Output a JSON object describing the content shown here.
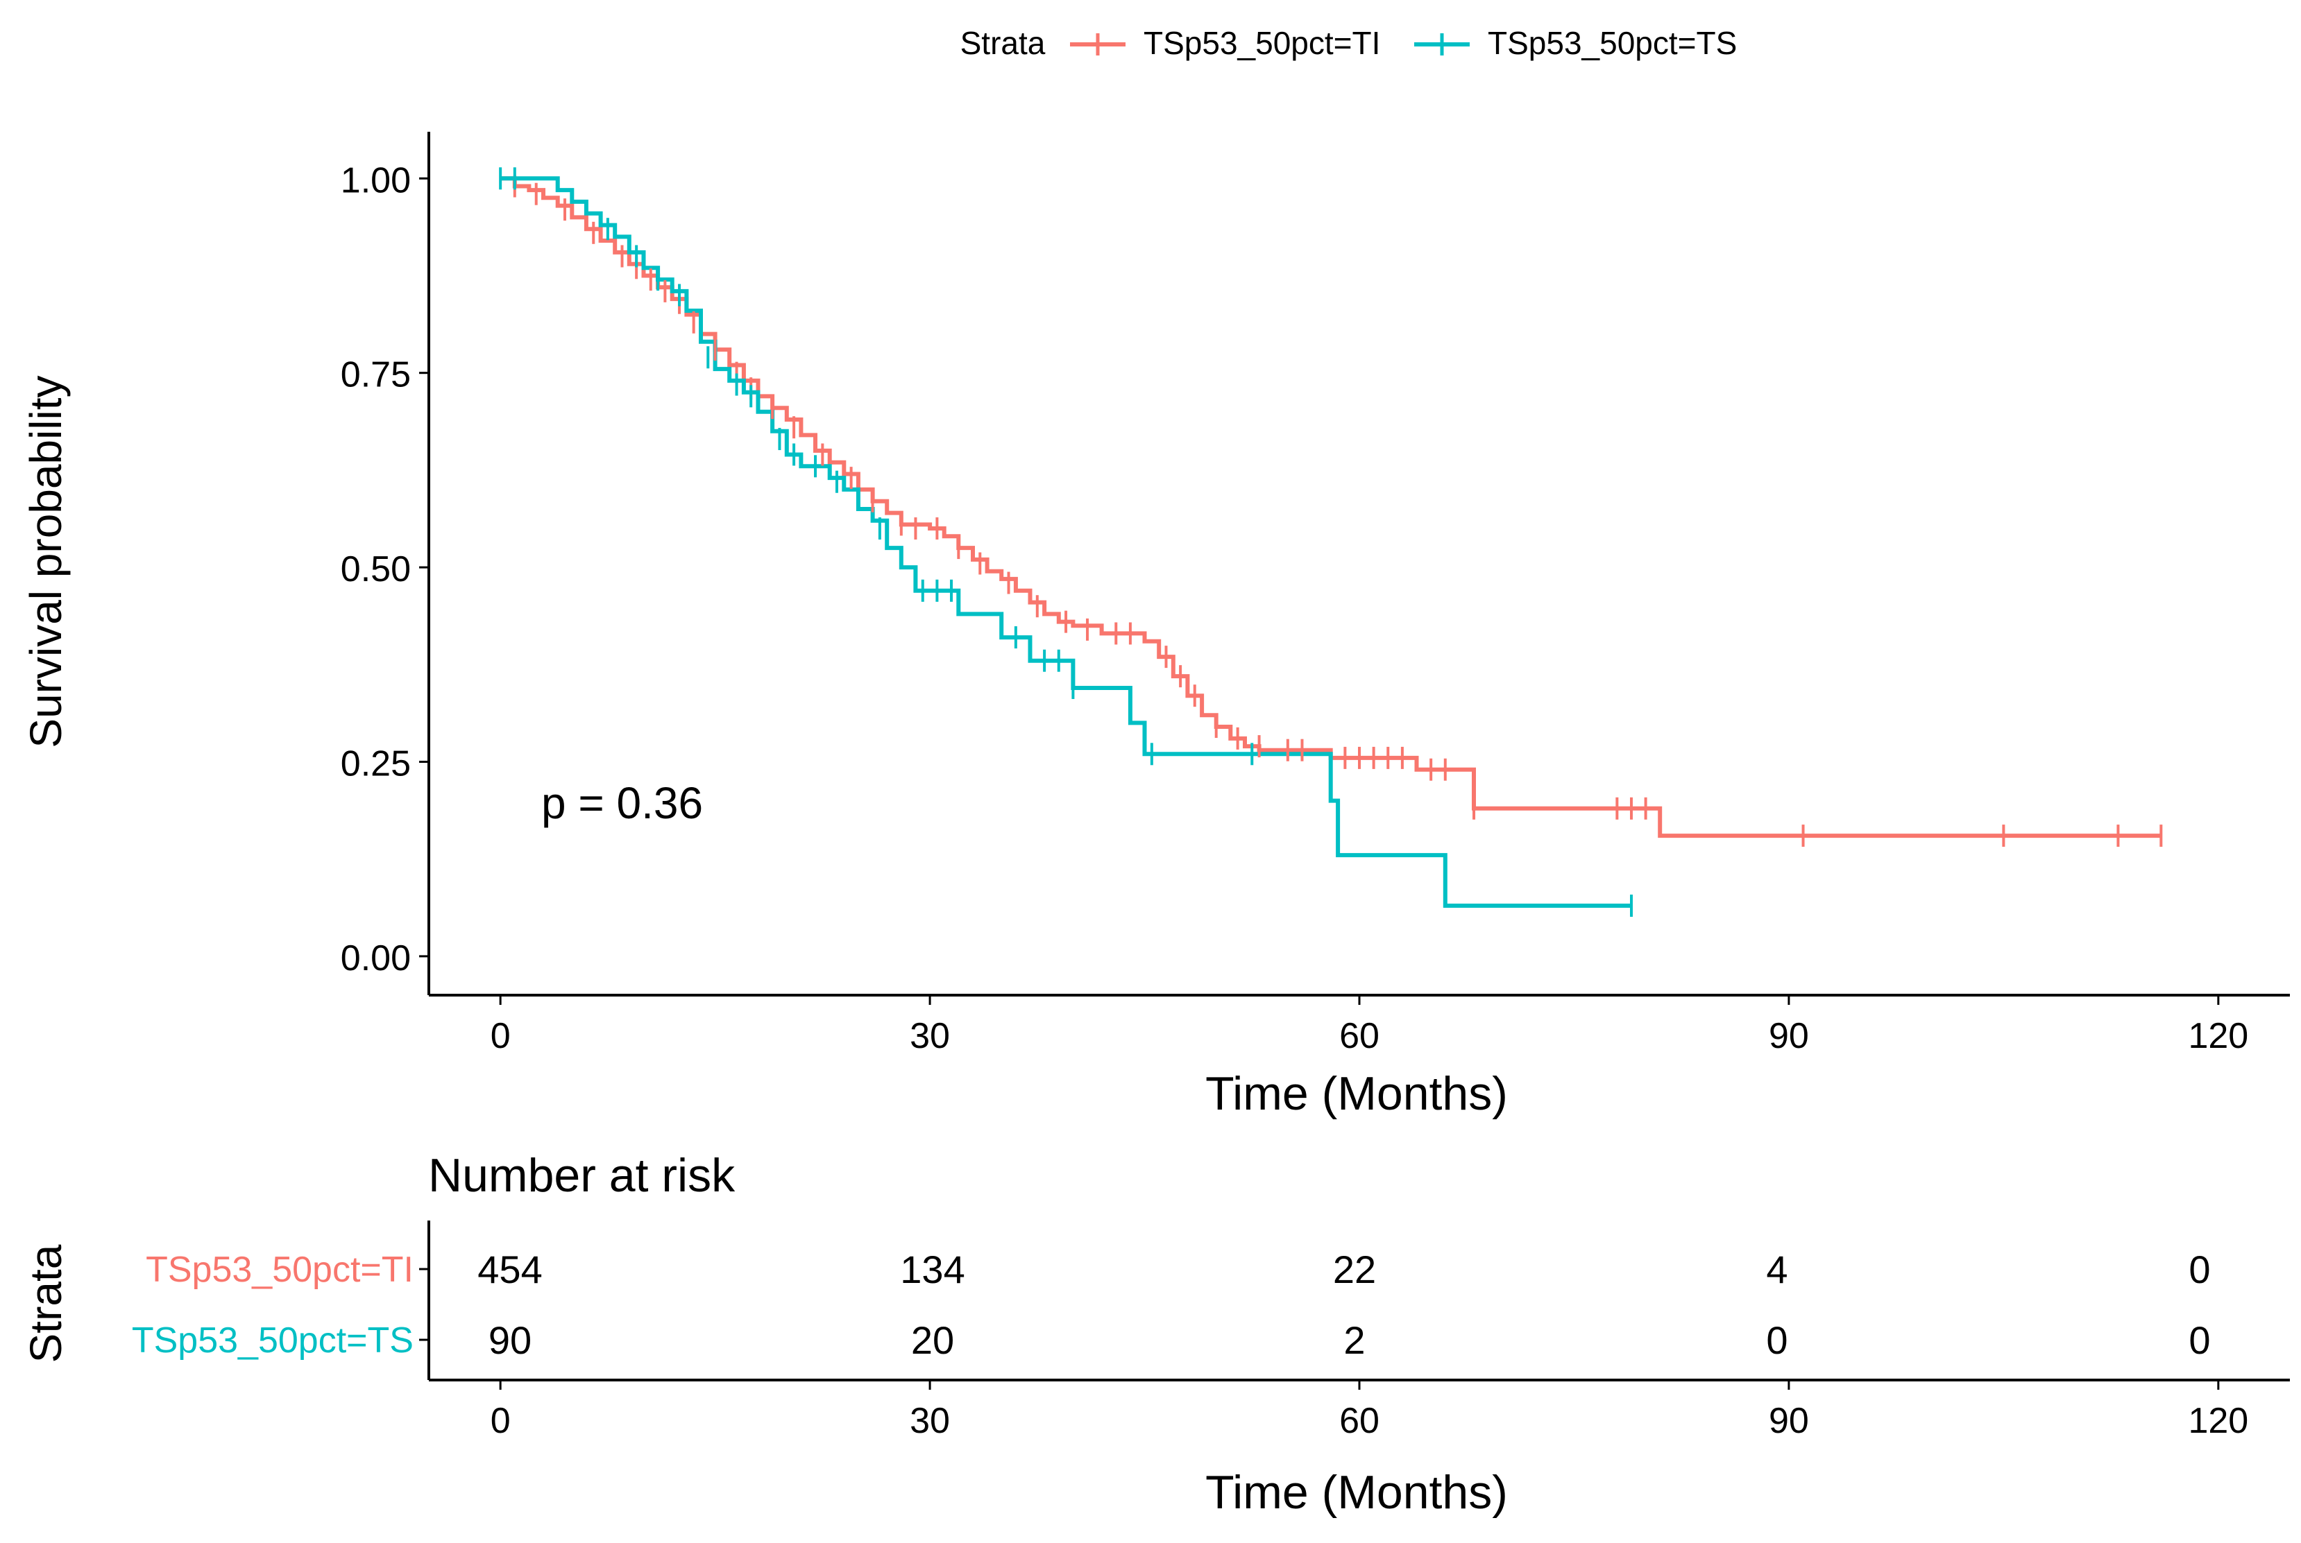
{
  "chart_data": {
    "type": "kaplan-meier",
    "legend": {
      "title": "Strata",
      "position": "top",
      "entries": [
        "TSp53_50pct=TI",
        "TSp53_50pct=TS"
      ]
    },
    "annotation": "p = 0.36",
    "colors": {
      "TI": "#f8766d",
      "TS": "#00bfc4",
      "axis": "#000000"
    },
    "main": {
      "xlabel": "Time (Months)",
      "ylabel": "Survival probability",
      "xlim": [
        -5,
        125
      ],
      "ylim": [
        -0.05,
        1.06
      ],
      "xticks": [
        0,
        30,
        60,
        90,
        120
      ],
      "xtick_labels": [
        "0",
        "30",
        "60",
        "90",
        "120"
      ],
      "yticks": [
        0,
        0.25,
        0.5,
        0.75,
        1.0
      ],
      "ytick_labels": [
        "0.00",
        "0.25",
        "0.50",
        "0.75",
        "1.00"
      ]
    },
    "series": [
      {
        "name": "TSp53_50pct=TI",
        "key": "TI",
        "steps": [
          [
            0,
            1
          ],
          [
            1,
            0.99
          ],
          [
            2,
            0.985
          ],
          [
            3,
            0.975
          ],
          [
            4,
            0.965
          ],
          [
            5,
            0.95
          ],
          [
            6,
            0.935
          ],
          [
            7,
            0.92
          ],
          [
            8,
            0.905
          ],
          [
            9,
            0.89
          ],
          [
            10,
            0.875
          ],
          [
            11,
            0.86
          ],
          [
            12,
            0.845
          ],
          [
            13,
            0.825
          ],
          [
            14,
            0.8
          ],
          [
            15,
            0.78
          ],
          [
            16,
            0.76
          ],
          [
            17,
            0.74
          ],
          [
            18,
            0.72
          ],
          [
            19,
            0.705
          ],
          [
            20,
            0.69
          ],
          [
            21,
            0.67
          ],
          [
            22,
            0.65
          ],
          [
            23,
            0.635
          ],
          [
            24,
            0.62
          ],
          [
            25,
            0.6
          ],
          [
            26,
            0.585
          ],
          [
            27,
            0.57
          ],
          [
            28,
            0.555
          ],
          [
            30,
            0.55
          ],
          [
            31,
            0.54
          ],
          [
            32,
            0.525
          ],
          [
            33,
            0.51
          ],
          [
            34,
            0.495
          ],
          [
            35,
            0.485
          ],
          [
            36,
            0.47
          ],
          [
            37,
            0.455
          ],
          [
            38,
            0.44
          ],
          [
            39,
            0.43
          ],
          [
            40,
            0.425
          ],
          [
            42,
            0.415
          ],
          [
            45,
            0.405
          ],
          [
            46,
            0.385
          ],
          [
            47,
            0.36
          ],
          [
            48,
            0.335
          ],
          [
            49,
            0.31
          ],
          [
            50,
            0.295
          ],
          [
            51,
            0.28
          ],
          [
            52,
            0.27
          ],
          [
            53,
            0.265
          ],
          [
            58,
            0.255
          ],
          [
            64,
            0.24
          ],
          [
            68,
            0.19
          ],
          [
            81,
            0.155
          ],
          [
            116,
            0.155
          ]
        ],
        "censors": [
          [
            1,
            0.99
          ],
          [
            2.5,
            0.98
          ],
          [
            4.5,
            0.96
          ],
          [
            6.5,
            0.93
          ],
          [
            8.5,
            0.9
          ],
          [
            9.5,
            0.885
          ],
          [
            10.5,
            0.87
          ],
          [
            11.5,
            0.855
          ],
          [
            12.5,
            0.84
          ],
          [
            13.5,
            0.815
          ],
          [
            15,
            0.78
          ],
          [
            16.5,
            0.75
          ],
          [
            17.5,
            0.73
          ],
          [
            19,
            0.705
          ],
          [
            20.5,
            0.68
          ],
          [
            22.5,
            0.645
          ],
          [
            24.5,
            0.615
          ],
          [
            26,
            0.585
          ],
          [
            28,
            0.555
          ],
          [
            29,
            0.55
          ],
          [
            30.5,
            0.55
          ],
          [
            32,
            0.525
          ],
          [
            33.5,
            0.505
          ],
          [
            35.5,
            0.48
          ],
          [
            37.5,
            0.45
          ],
          [
            39.5,
            0.43
          ],
          [
            41,
            0.42
          ],
          [
            43,
            0.415
          ],
          [
            44,
            0.415
          ],
          [
            46.5,
            0.385
          ],
          [
            47.5,
            0.36
          ],
          [
            48.5,
            0.335
          ],
          [
            50,
            0.295
          ],
          [
            51.5,
            0.28
          ],
          [
            53,
            0.27
          ],
          [
            55,
            0.265
          ],
          [
            56,
            0.265
          ],
          [
            59,
            0.255
          ],
          [
            60,
            0.255
          ],
          [
            61,
            0.255
          ],
          [
            62,
            0.255
          ],
          [
            63,
            0.255
          ],
          [
            65,
            0.24
          ],
          [
            66,
            0.24
          ],
          [
            68,
            0.19
          ],
          [
            78,
            0.19
          ],
          [
            79,
            0.19
          ],
          [
            80,
            0.19
          ],
          [
            91,
            0.155
          ],
          [
            105,
            0.155
          ],
          [
            113,
            0.155
          ],
          [
            116,
            0.155
          ]
        ],
        "risk_table": [
          "454",
          "134",
          "22",
          "4",
          "0"
        ]
      },
      {
        "name": "TSp53_50pct=TS",
        "key": "TS",
        "steps": [
          [
            0,
            1
          ],
          [
            4,
            0.985
          ],
          [
            5,
            0.97
          ],
          [
            6,
            0.955
          ],
          [
            7,
            0.94
          ],
          [
            8,
            0.925
          ],
          [
            9,
            0.905
          ],
          [
            10,
            0.885
          ],
          [
            11,
            0.87
          ],
          [
            12,
            0.855
          ],
          [
            13,
            0.83
          ],
          [
            14,
            0.79
          ],
          [
            15,
            0.755
          ],
          [
            16,
            0.74
          ],
          [
            17,
            0.725
          ],
          [
            18,
            0.7
          ],
          [
            19,
            0.675
          ],
          [
            20,
            0.645
          ],
          [
            21,
            0.63
          ],
          [
            23,
            0.615
          ],
          [
            24,
            0.6
          ],
          [
            25,
            0.575
          ],
          [
            26,
            0.56
          ],
          [
            27,
            0.525
          ],
          [
            28,
            0.5
          ],
          [
            29,
            0.47
          ],
          [
            32,
            0.44
          ],
          [
            35,
            0.41
          ],
          [
            37,
            0.38
          ],
          [
            40,
            0.345
          ],
          [
            44,
            0.3
          ],
          [
            45,
            0.26
          ],
          [
            58,
            0.2
          ],
          [
            58.5,
            0.13
          ],
          [
            66,
            0.065
          ],
          [
            79,
            0.065
          ]
        ],
        "censors": [
          [
            0,
            1
          ],
          [
            1,
            1
          ],
          [
            7.5,
            0.935
          ],
          [
            9.5,
            0.9
          ],
          [
            11,
            0.87
          ],
          [
            12.5,
            0.85
          ],
          [
            14.5,
            0.77
          ],
          [
            16.5,
            0.735
          ],
          [
            17.5,
            0.72
          ],
          [
            19.5,
            0.665
          ],
          [
            20.5,
            0.645
          ],
          [
            22,
            0.63
          ],
          [
            23.5,
            0.61
          ],
          [
            26.5,
            0.55
          ],
          [
            29.5,
            0.47
          ],
          [
            30.5,
            0.47
          ],
          [
            31.5,
            0.47
          ],
          [
            36,
            0.41
          ],
          [
            38,
            0.38
          ],
          [
            39,
            0.38
          ],
          [
            40,
            0.345
          ],
          [
            45.5,
            0.26
          ],
          [
            52.5,
            0.26
          ],
          [
            79,
            0.065
          ]
        ],
        "risk_table": [
          "90",
          "20",
          "2",
          "0",
          "0"
        ]
      }
    ],
    "risk_table": {
      "title": "Number at risk",
      "ylabel": "Strata",
      "xlabel": "Time (Months)",
      "times": [
        0,
        30,
        60,
        90,
        120
      ],
      "xtick_labels": [
        "0",
        "30",
        "60",
        "90",
        "120"
      ]
    }
  }
}
